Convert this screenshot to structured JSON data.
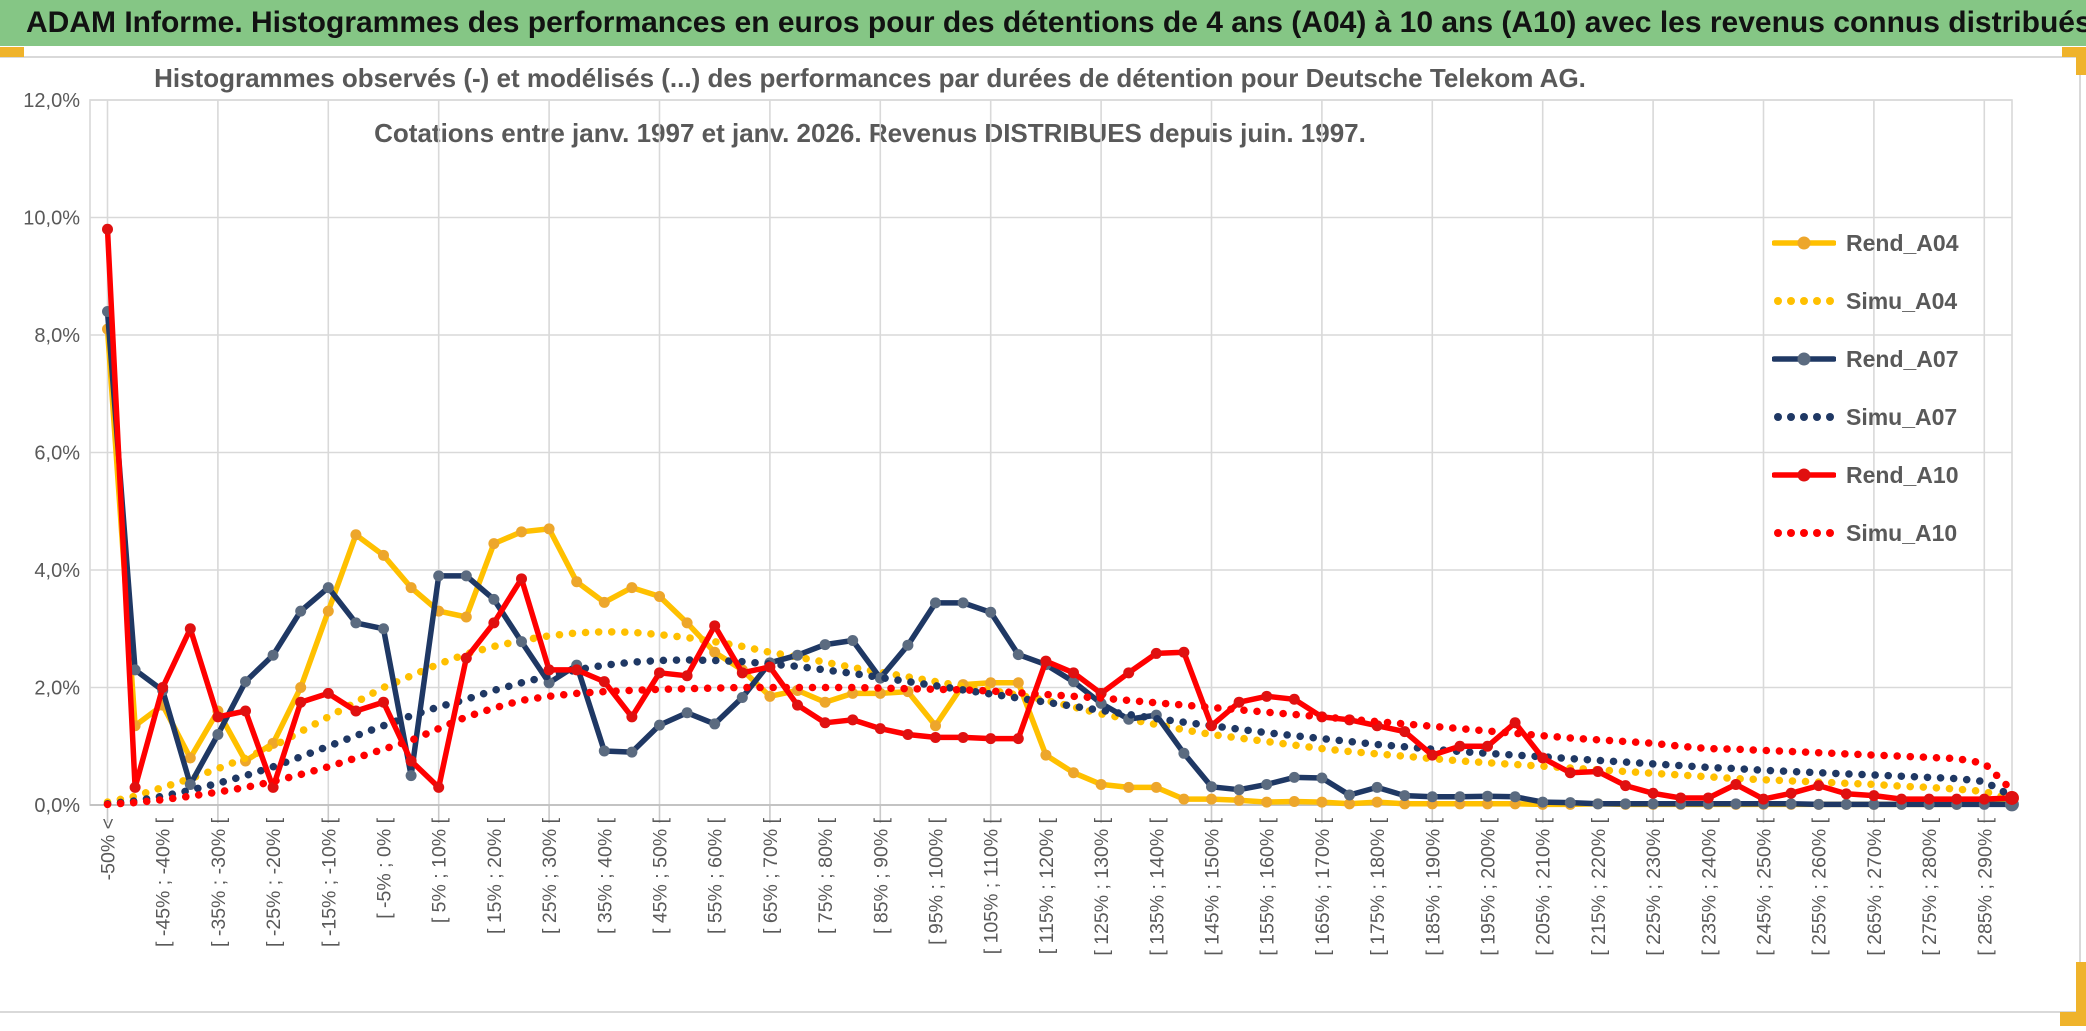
{
  "header": {
    "title": "ADAM Informe. Histogrammes des performances en euros pour des détentions de 4 ans (A04) à 10 ans (A10) avec les revenus connus distribués"
  },
  "colors": {
    "banner_green": "#85C685",
    "accent_gold": "#EFB32B",
    "grid_gray": "#D9D9D9",
    "axis_text_gray": "#595959",
    "series_yellow": "#FFC000",
    "series_navy": "#1F3864",
    "series_red": "#FF0000"
  },
  "chart_data": {
    "type": "line",
    "title_line1": "Histogrammes observés (-) et modélisés (...) des performances par durées de détention pour Deutsche Telekom AG.",
    "title_line2": "Cotations entre janv. 1997 et janv. 2026. Revenus DISTRIBUES depuis juin. 1997.",
    "legend_position": "right",
    "grid": true,
    "ylim": [
      0,
      12
    ],
    "y_tick_labels": [
      "0,0%",
      "2,0%",
      "4,0%",
      "6,0%",
      "8,0%",
      "10,0%",
      "12,0%"
    ],
    "bin_count": 70,
    "x_tick_bin_step": 2,
    "x_tick_labels": [
      "-50% <",
      "[ -45% ; -40% [",
      "[ -35% ; -30% [",
      "[ -25% ; -20% [",
      "[ -15% ; -10% [",
      "[ -5% ; 0% [",
      "[ 5% ; 10% [",
      "[ 15% ; 20% [",
      "[ 25% ; 30% [",
      "[ 35% ; 40% [",
      "[ 45% ; 50% [",
      "[ 55% ; 60% [",
      "[ 65% ; 70% [",
      "[ 75% ; 80% [",
      "[ 85% ; 90% [",
      "[ 95% ; 100% [",
      "[ 105% ; 110% [",
      "[ 115% ; 120% [",
      "[ 125% ; 130% [",
      "[ 135% ; 140% [",
      "[ 145% ; 150% [",
      "[ 155% ; 160% [",
      "[ 165% ; 170% [",
      "[ 175% ; 180% [",
      "[ 185% ; 190% [",
      "[ 195% ; 200% [",
      "[ 205% ; 210% [",
      "[ 215% ; 220% [",
      "[ 225% ; 230% [",
      "[ 235% ; 240% [",
      "[ 245% ; 250% [",
      "[ 255% ; 260% [",
      "[ 265% ; 270% [",
      "[ 275% ; 280% [",
      "[ 285% ; 290% ["
    ],
    "series": [
      {
        "name": "Rend_A04",
        "style": "solid",
        "color": "#FFC000",
        "marker_color": "#EDA62B",
        "values": [
          8.1,
          1.35,
          1.7,
          0.8,
          1.6,
          0.75,
          1.05,
          2.0,
          3.3,
          4.6,
          4.25,
          3.7,
          3.3,
          3.2,
          4.45,
          4.65,
          4.7,
          3.8,
          3.45,
          3.7,
          3.55,
          3.1,
          2.6,
          2.3,
          1.85,
          1.95,
          1.75,
          1.9,
          1.9,
          1.93,
          1.35,
          2.05,
          2.08,
          2.08,
          0.85,
          0.55,
          0.35,
          0.3,
          0.3,
          0.1,
          0.1,
          0.08,
          0.05,
          0.06,
          0.05,
          0.02,
          0.05,
          0.02,
          0.02,
          0.02,
          0.02,
          0.02,
          0.01,
          0.01,
          0.02,
          0.01,
          0.01,
          0.01,
          0.01,
          0.01,
          0.01,
          0.01,
          0.01,
          0.01,
          0.01,
          0.01,
          0.01,
          0.01,
          0.05,
          0.12
        ]
      },
      {
        "name": "Simu_A04",
        "style": "dotted",
        "color": "#FFC000",
        "values": [
          0.05,
          0.15,
          0.3,
          0.45,
          0.62,
          0.8,
          1.0,
          1.25,
          1.5,
          1.75,
          2.0,
          2.2,
          2.4,
          2.57,
          2.7,
          2.8,
          2.88,
          2.93,
          2.95,
          2.94,
          2.9,
          2.85,
          2.78,
          2.7,
          2.6,
          2.52,
          2.43,
          2.34,
          2.26,
          2.18,
          2.1,
          2.02,
          1.95,
          1.87,
          1.78,
          1.67,
          1.55,
          1.46,
          1.37,
          1.28,
          1.2,
          1.14,
          1.08,
          1.02,
          0.96,
          0.91,
          0.87,
          0.83,
          0.79,
          0.75,
          0.72,
          0.69,
          0.66,
          0.63,
          0.6,
          0.57,
          0.54,
          0.51,
          0.48,
          0.45,
          0.43,
          0.41,
          0.39,
          0.37,
          0.35,
          0.32,
          0.3,
          0.27,
          0.23,
          0.1
        ]
      },
      {
        "name": "Rend_A07",
        "style": "solid",
        "color": "#1F3864",
        "marker_color": "#5B6B80",
        "values": [
          8.4,
          2.3,
          1.95,
          0.35,
          1.2,
          2.1,
          2.55,
          3.3,
          3.7,
          3.1,
          3.0,
          0.5,
          3.9,
          3.9,
          3.5,
          2.78,
          2.08,
          2.38,
          0.92,
          0.9,
          1.36,
          1.57,
          1.38,
          1.83,
          2.42,
          2.55,
          2.73,
          2.8,
          2.16,
          2.72,
          3.44,
          3.44,
          3.28,
          2.56,
          2.39,
          2.1,
          1.73,
          1.46,
          1.53,
          0.88,
          0.31,
          0.26,
          0.35,
          0.47,
          0.46,
          0.17,
          0.3,
          0.16,
          0.14,
          0.14,
          0.15,
          0.14,
          0.05,
          0.04,
          0.02,
          0.02,
          0.02,
          0.02,
          0.02,
          0.02,
          0.02,
          0.02,
          0.01,
          0.01,
          0.01,
          0.01,
          0.01,
          0.01,
          0.01,
          0.01
        ]
      },
      {
        "name": "Simu_A07",
        "style": "dotted",
        "color": "#1F3864",
        "values": [
          0.02,
          0.07,
          0.15,
          0.25,
          0.37,
          0.5,
          0.65,
          0.82,
          1.0,
          1.18,
          1.35,
          1.52,
          1.67,
          1.8,
          1.95,
          2.08,
          2.2,
          2.3,
          2.38,
          2.43,
          2.46,
          2.47,
          2.46,
          2.44,
          2.4,
          2.36,
          2.3,
          2.24,
          2.17,
          2.1,
          2.03,
          1.96,
          1.89,
          1.82,
          1.75,
          1.68,
          1.61,
          1.54,
          1.47,
          1.41,
          1.35,
          1.29,
          1.23,
          1.18,
          1.13,
          1.08,
          1.03,
          0.99,
          0.95,
          0.91,
          0.88,
          0.85,
          0.82,
          0.79,
          0.76,
          0.73,
          0.7,
          0.67,
          0.64,
          0.62,
          0.59,
          0.57,
          0.55,
          0.53,
          0.51,
          0.49,
          0.47,
          0.45,
          0.4,
          0.15
        ]
      },
      {
        "name": "Rend_A10",
        "style": "solid",
        "color": "#FF0000",
        "marker_color": "#E01010",
        "values": [
          9.8,
          0.3,
          2.0,
          3.0,
          1.5,
          1.6,
          0.3,
          1.75,
          1.9,
          1.6,
          1.75,
          0.75,
          0.3,
          2.5,
          3.1,
          3.85,
          2.3,
          2.3,
          2.1,
          1.5,
          2.25,
          2.2,
          3.05,
          2.25,
          2.35,
          1.7,
          1.4,
          1.45,
          1.3,
          1.2,
          1.15,
          1.15,
          1.13,
          1.13,
          2.45,
          2.25,
          1.9,
          2.25,
          2.58,
          2.6,
          1.35,
          1.75,
          1.85,
          1.8,
          1.5,
          1.45,
          1.35,
          1.25,
          0.85,
          1.0,
          1.0,
          1.4,
          0.8,
          0.55,
          0.57,
          0.33,
          0.2,
          0.12,
          0.12,
          0.35,
          0.1,
          0.2,
          0.33,
          0.19,
          0.16,
          0.1,
          0.1,
          0.1,
          0.1,
          0.12
        ]
      },
      {
        "name": "Simu_A10",
        "style": "dotted",
        "color": "#FF0000",
        "values": [
          0.01,
          0.04,
          0.09,
          0.15,
          0.22,
          0.3,
          0.4,
          0.52,
          0.65,
          0.8,
          0.95,
          1.1,
          1.3,
          1.5,
          1.65,
          1.78,
          1.85,
          1.9,
          1.93,
          1.95,
          1.97,
          1.98,
          1.99,
          2.0,
          2.0,
          2.0,
          2.0,
          2.0,
          1.99,
          1.98,
          1.97,
          1.96,
          1.94,
          1.91,
          1.88,
          1.85,
          1.82,
          1.78,
          1.74,
          1.7,
          1.66,
          1.62,
          1.58,
          1.54,
          1.5,
          1.46,
          1.42,
          1.38,
          1.34,
          1.3,
          1.26,
          1.22,
          1.18,
          1.14,
          1.11,
          1.08,
          1.05,
          1.0,
          0.96,
          0.95,
          0.93,
          0.91,
          0.89,
          0.87,
          0.85,
          0.83,
          0.81,
          0.79,
          0.71,
          0.25
        ]
      }
    ]
  }
}
